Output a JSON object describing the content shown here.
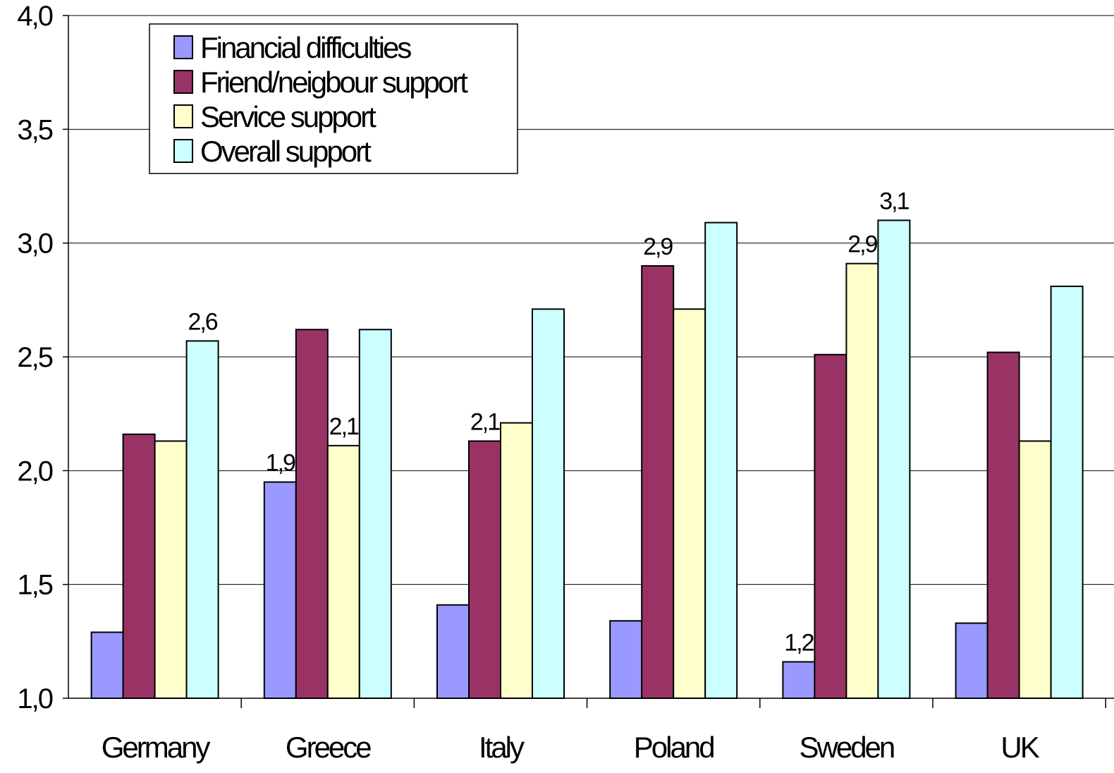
{
  "chart_data": {
    "type": "bar",
    "title": "",
    "xlabel": "",
    "ylabel": "",
    "ylim": [
      1.0,
      4.0
    ],
    "yticks": [
      1.0,
      1.5,
      2.0,
      2.5,
      3.0,
      3.5,
      4.0
    ],
    "ytick_labels": [
      "1,0",
      "1,5",
      "2,0",
      "2,5",
      "3,0",
      "3,5",
      "4,0"
    ],
    "grid": true,
    "legend_position": "top-left",
    "categories": [
      "Germany",
      "Greece",
      "Italy",
      "Poland",
      "Sweden",
      "UK"
    ],
    "series": [
      {
        "name": "Financial difficulties",
        "color": "#9999ff",
        "values": [
          1.29,
          1.95,
          1.41,
          1.34,
          1.16,
          1.33
        ]
      },
      {
        "name": "Friend/neigbour support",
        "color": "#993366",
        "values": [
          2.16,
          2.62,
          2.13,
          2.9,
          2.51,
          2.52
        ]
      },
      {
        "name": "Service support",
        "color": "#ffffcc",
        "values": [
          2.13,
          2.11,
          2.21,
          2.71,
          2.91,
          2.13
        ]
      },
      {
        "name": "Overall support",
        "color": "#ccffff",
        "values": [
          2.57,
          2.62,
          2.71,
          3.09,
          3.1,
          2.81
        ]
      }
    ],
    "data_labels": [
      {
        "category": "Germany",
        "series": "Overall support",
        "text": "2,6"
      },
      {
        "category": "Greece",
        "series": "Financial difficulties",
        "text": "1,9"
      },
      {
        "category": "Greece",
        "series": "Service support",
        "text": "2,1"
      },
      {
        "category": "Italy",
        "series": "Friend/neigbour support",
        "text": "2,1"
      },
      {
        "category": "Poland",
        "series": "Friend/neigbour support",
        "text": "2,9"
      },
      {
        "category": "Sweden",
        "series": "Financial difficulties",
        "text": "1,2"
      },
      {
        "category": "Sweden",
        "series": "Service support",
        "text": "2,9"
      },
      {
        "category": "Sweden",
        "series": "Overall support",
        "text": "3,1"
      }
    ]
  }
}
